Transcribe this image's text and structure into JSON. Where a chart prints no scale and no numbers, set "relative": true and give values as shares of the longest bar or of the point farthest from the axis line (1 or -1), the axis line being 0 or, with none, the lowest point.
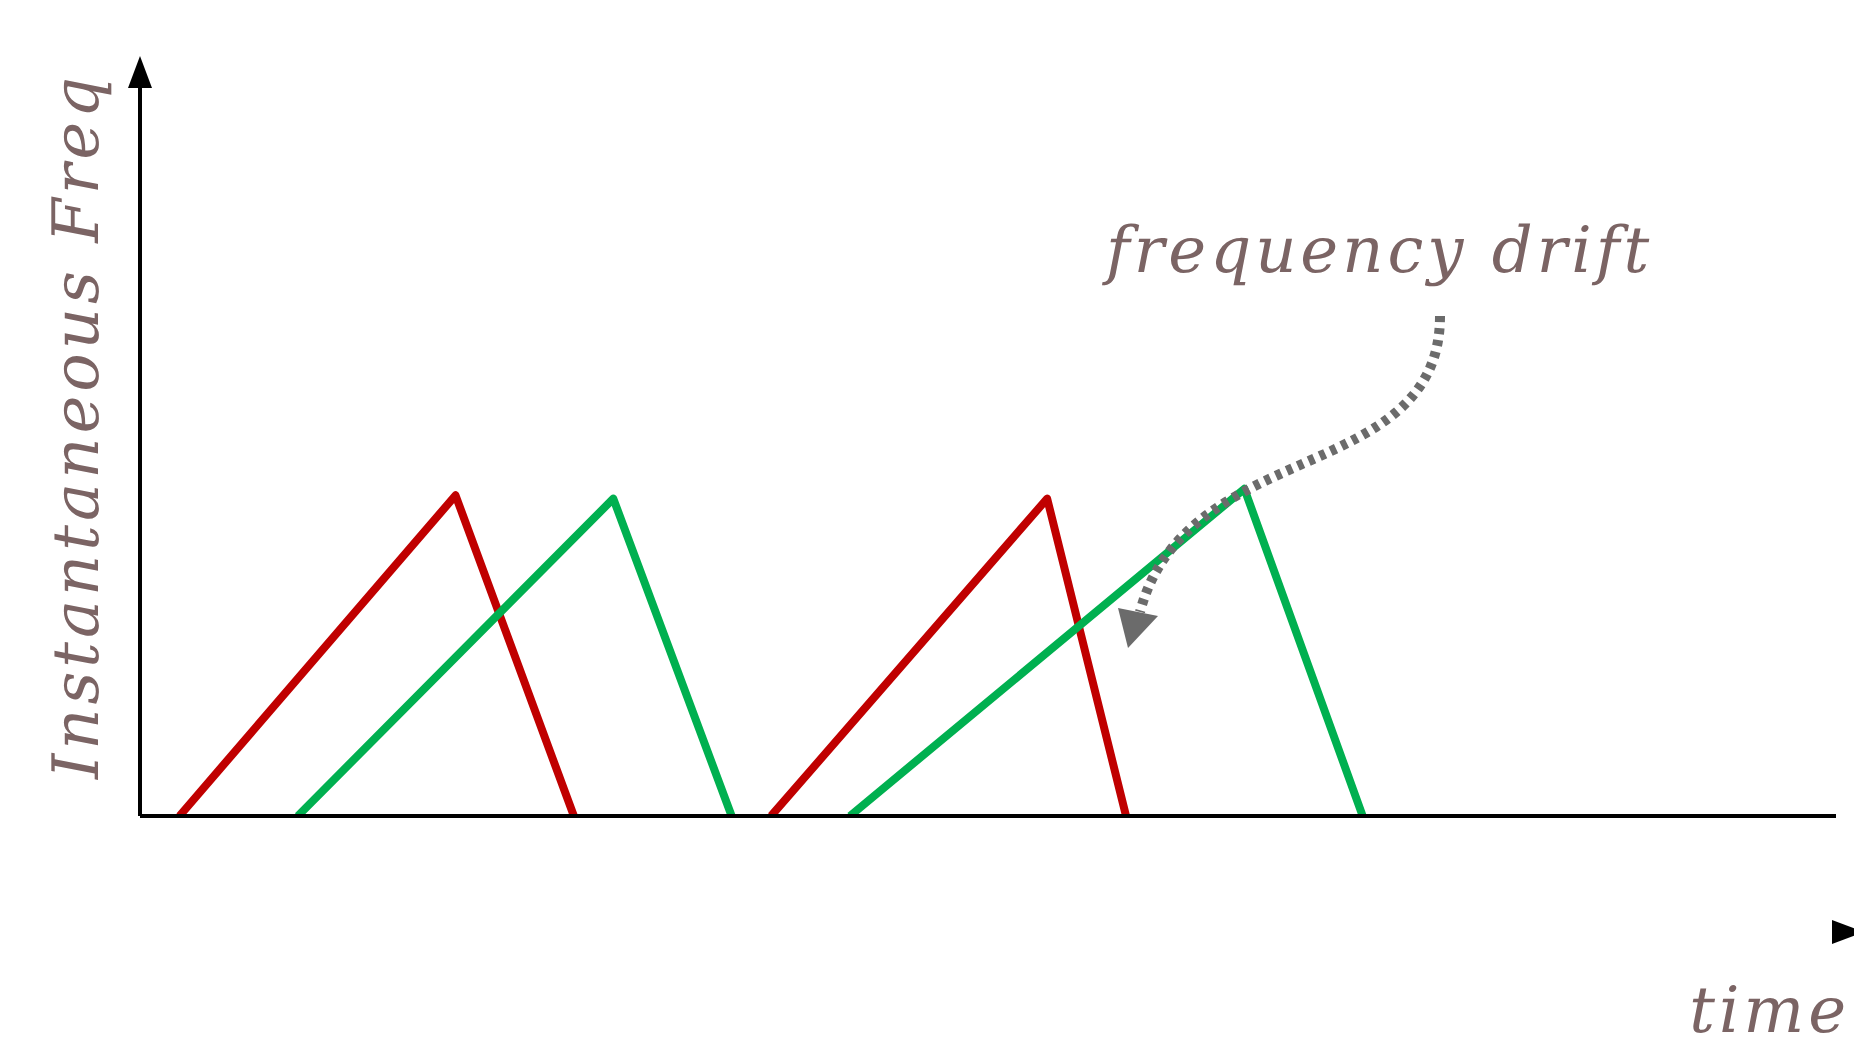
{
  "chart_data": {
    "type": "line",
    "relative": true,
    "xlabel": "time",
    "ylabel": "Instantaneous Freq",
    "annotations": [
      "frequency drift"
    ],
    "categories": [
      null,
      null,
      null,
      null,
      null,
      null,
      null,
      null,
      null,
      null,
      null,
      null,
      null,
      null,
      null,
      null,
      null,
      null,
      null,
      null,
      null,
      null,
      null,
      null,
      null,
      null,
      null,
      null,
      null,
      null,
      null,
      null,
      null,
      null,
      null,
      null,
      null,
      null,
      null,
      null,
      null,
      null,
      null,
      null
    ],
    "series": [
      {
        "color": "#c00000",
        "values": [
          null,
          0,
          null,
          null,
          null,
          null,
          null,
          null,
          0.98,
          null,
          null,
          0,
          null,
          null,
          null,
          null,
          null,
          null,
          null,
          null,
          null,
          null,
          null,
          null,
          null,
          null,
          null,
          null,
          null,
          null,
          null,
          null,
          null,
          null,
          null,
          null,
          null,
          null,
          null,
          null,
          null,
          null,
          null,
          null
        ]
      },
      {
        "color": "#00b050",
        "values": [
          null,
          null,
          null,
          null,
          0,
          null,
          null,
          null,
          null,
          null,
          null,
          null,
          0.97,
          null,
          null,
          0,
          null,
          null,
          null,
          null,
          null,
          null,
          null,
          null,
          null,
          null,
          null,
          null,
          null,
          null,
          null,
          null,
          null,
          null,
          null,
          null,
          null,
          null,
          null,
          null,
          null,
          null,
          null,
          null
        ]
      },
      {
        "color": "#c00000",
        "values": [
          null,
          null,
          null,
          null,
          null,
          null,
          null,
          null,
          null,
          null,
          null,
          null,
          null,
          null,
          null,
          null,
          0,
          null,
          null,
          null,
          null,
          null,
          null,
          0.97,
          null,
          0,
          null,
          null,
          null,
          null,
          null,
          null,
          null,
          null,
          null,
          null,
          null,
          null,
          null,
          null,
          null,
          null,
          null,
          null
        ]
      },
      {
        "color": "#00b050",
        "values": [
          null,
          null,
          null,
          null,
          null,
          null,
          null,
          null,
          null,
          null,
          null,
          null,
          null,
          null,
          null,
          null,
          null,
          null,
          0,
          null,
          null,
          null,
          null,
          null,
          null,
          null,
          null,
          null,
          1,
          null,
          null,
          0,
          null,
          null,
          null,
          null,
          null,
          null,
          null,
          null,
          null,
          null,
          null,
          null
        ]
      }
    ]
  }
}
